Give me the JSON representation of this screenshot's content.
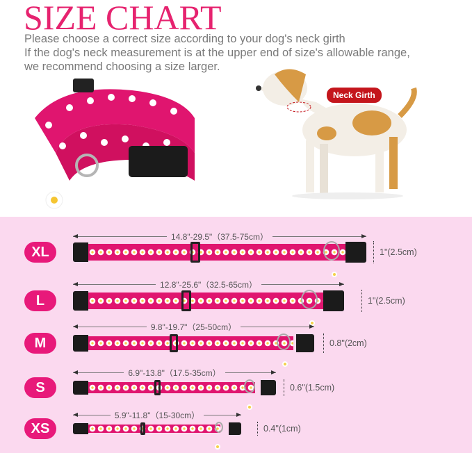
{
  "title": "SIZE CHART",
  "intro": [
    "Please choose a correct size according to your dog's neck girth",
    "If the dog's neck measurement is at the upper end of size's allowable range,",
    "we recommend choosing a size larger."
  ],
  "neck_label": "Neck Girth",
  "colors": {
    "accent": "#e8197a",
    "title": "#e6236f",
    "background_pink": "#fbd9ef",
    "neck_badge": "#c4161c"
  },
  "sizes": [
    {
      "label": "XL",
      "length": "14.8\"-29.5\"（37.5-75cm）",
      "width": "1\"(2.5cm)"
    },
    {
      "label": "L",
      "length": "12.8\"-25.6\"（32.5-65cm）",
      "width": "1\"(2.5cm)"
    },
    {
      "label": "M",
      "length": "9.8\"-19.7\"（25-50cm）",
      "width": "0.8\"(2cm)"
    },
    {
      "label": "S",
      "length": "6.9\"-13.8\"（17.5-35cm）",
      "width": "0.6\"(1.5cm)"
    },
    {
      "label": "XS",
      "length": "5.9\"-11.8\"（15-30cm）",
      "width": "0.4\"(1cm)"
    }
  ]
}
